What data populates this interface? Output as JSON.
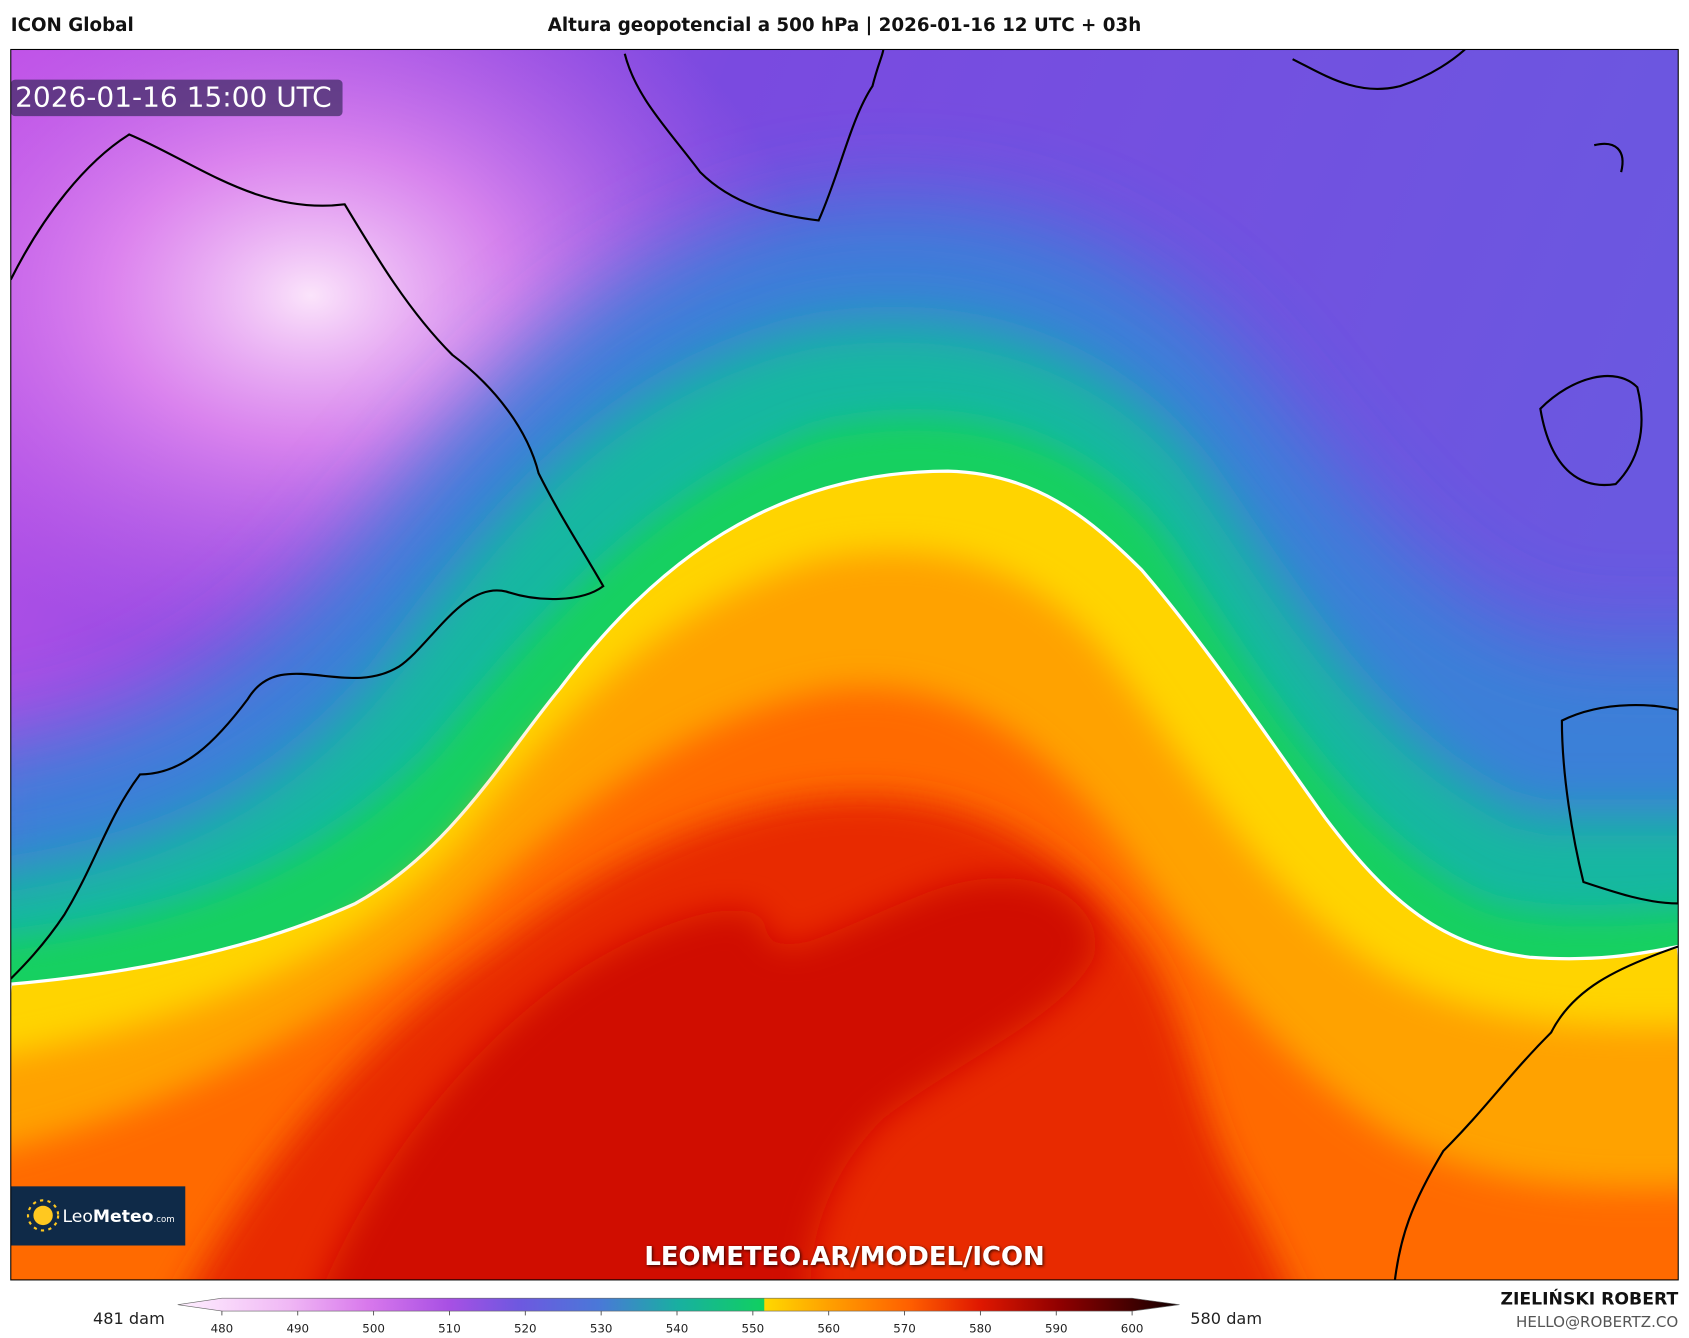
{
  "header": {
    "model": "ICON Global",
    "title": "Altura geopotencial a 500 hPa | 2026-01-16 12 UTC + 03h"
  },
  "map": {
    "timestamp": "2026-01-16 15:00 UTC",
    "watermark": "LEOMETEO.AR/MODEL/ICON",
    "logo": {
      "name_light": "Leo",
      "name_bold": "Meteo",
      "suffix": ".com"
    }
  },
  "colorbar": {
    "min_label": "481 dam",
    "max_label": "580 dam",
    "ticks": [
      480,
      490,
      500,
      510,
      520,
      530,
      540,
      550,
      560,
      570,
      580,
      590,
      600
    ]
  },
  "credits": {
    "author": "ZIELIŃSKI ROBERT",
    "contact": "HELLO@ROBERTZ.CO"
  }
}
